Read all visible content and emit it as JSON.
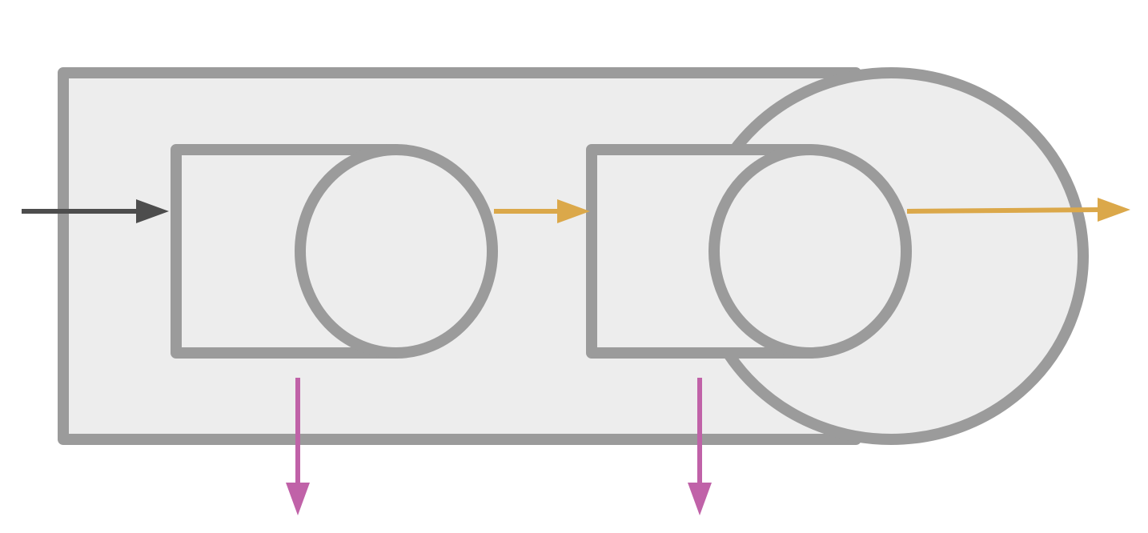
{
  "colors": {
    "background": "#ffffff",
    "block_fill": "#ededed",
    "block_stroke": "#9b9b9b",
    "input_arrow": "#4d4d4d",
    "signal_arrow": "#dba84a",
    "output_arrow": "#c062a8"
  },
  "blocks": [
    {
      "id": "outer-block",
      "shape": "rounded-capsule"
    },
    {
      "id": "inner-block-1",
      "shape": "rounded-capsule"
    },
    {
      "id": "inner-block-2",
      "shape": "rounded-capsule"
    }
  ],
  "arrows": [
    {
      "id": "input-arrow",
      "color_role": "input_arrow",
      "direction": "right"
    },
    {
      "id": "signal-arrow-1",
      "color_role": "signal_arrow",
      "direction": "right"
    },
    {
      "id": "signal-arrow-2",
      "color_role": "signal_arrow",
      "direction": "right"
    },
    {
      "id": "output-arrow-1",
      "color_role": "output_arrow",
      "direction": "down"
    },
    {
      "id": "output-arrow-2",
      "color_role": "output_arrow",
      "direction": "down"
    }
  ]
}
